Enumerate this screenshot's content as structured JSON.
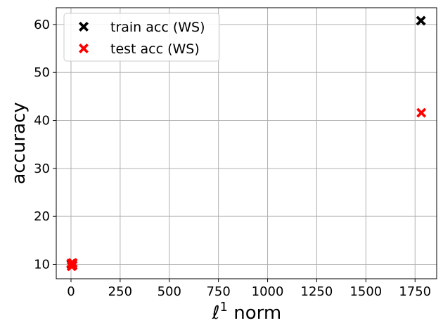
{
  "chart_data": {
    "type": "scatter",
    "title": "",
    "xlabel": "norm",
    "xlabel_symbol": "ℓ",
    "xlabel_superscript": "1",
    "ylabel": "accuracy",
    "xlim": [
      -75,
      1860
    ],
    "ylim": [
      7,
      63.5
    ],
    "xticks": [
      0,
      250,
      500,
      750,
      1000,
      1250,
      1500,
      1750
    ],
    "xtick_labels": [
      "0",
      "250",
      "500",
      "750",
      "1000",
      "1250",
      "1500",
      "1750"
    ],
    "yticks": [
      10,
      20,
      30,
      40,
      50,
      60
    ],
    "ytick_labels": [
      "10",
      "20",
      "30",
      "40",
      "50",
      "60"
    ],
    "grid": true,
    "legend_position": "top-left",
    "marker": "X",
    "series": [
      {
        "name": "train acc (WS)",
        "color": "#000000",
        "points": [
          {
            "x": 1780,
            "y": 60.8
          },
          {
            "x": 2,
            "y": 10.0
          },
          {
            "x": 4,
            "y": 9.9
          },
          {
            "x": 6,
            "y": 10.1
          },
          {
            "x": 8,
            "y": 9.8
          }
        ]
      },
      {
        "name": "test acc (WS)",
        "color": "#ff0000",
        "points": [
          {
            "x": 1782,
            "y": 41.6
          },
          {
            "x": 1,
            "y": 10.2
          },
          {
            "x": 3,
            "y": 9.6
          },
          {
            "x": 5,
            "y": 10.0
          },
          {
            "x": 7,
            "y": 9.7
          },
          {
            "x": 9,
            "y": 10.3
          }
        ]
      }
    ]
  }
}
